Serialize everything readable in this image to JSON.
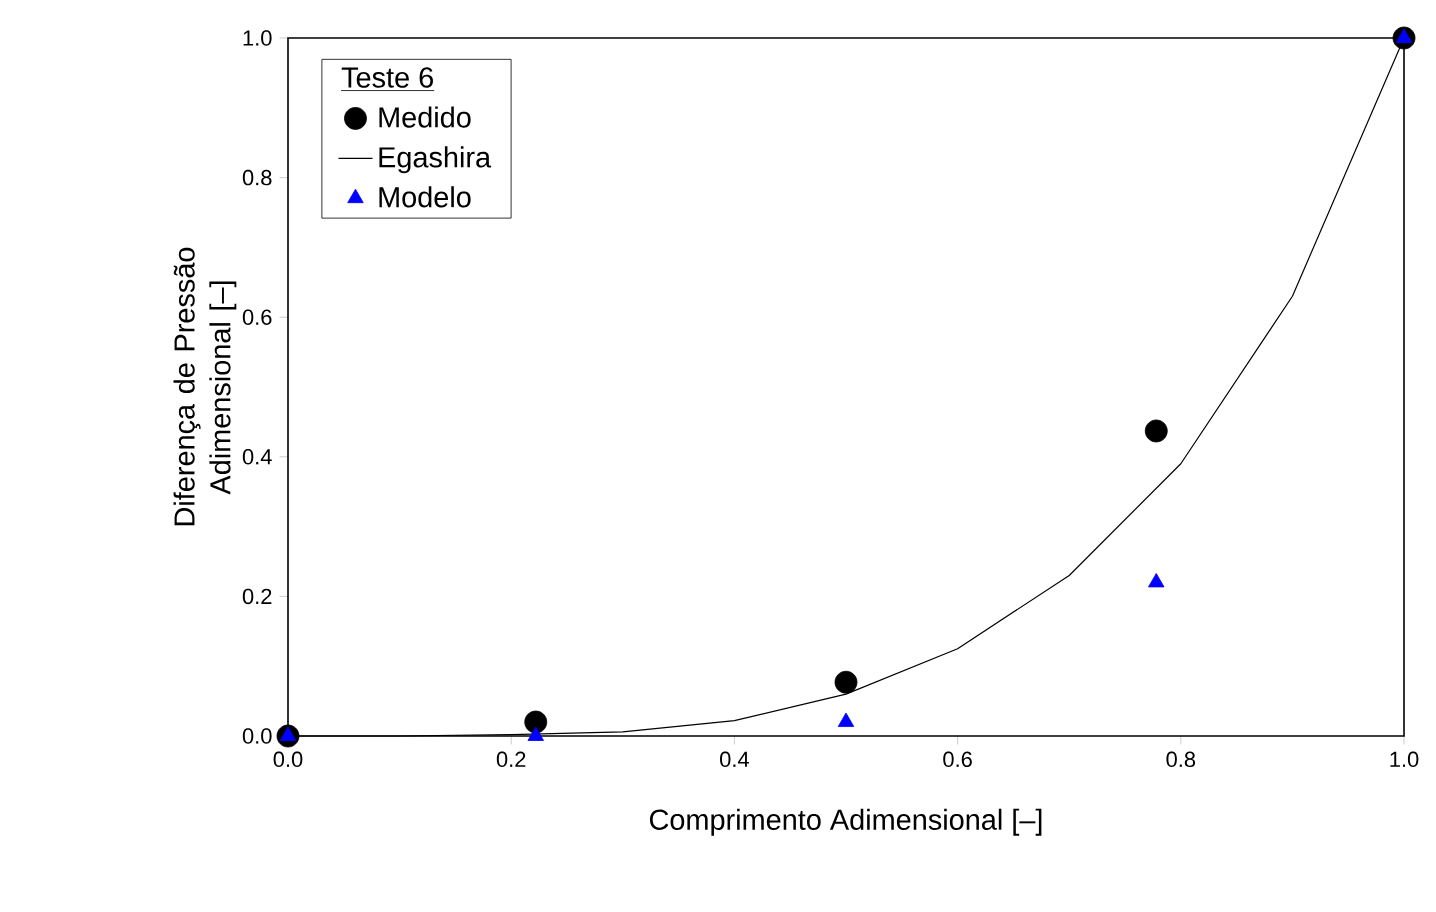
{
  "chart_data": {
    "type": "scatter",
    "xlabel": "Comprimento Adimensional [–]",
    "ylabel": "Diferença de Pressão Adimensional [–]",
    "legend_title": "Teste 6",
    "legend": "top left",
    "grid": false,
    "xlim": [
      0,
      1
    ],
    "ylim": [
      0,
      1
    ],
    "xticks": [
      {
        "value": 0,
        "label": "0.0"
      },
      {
        "value": 0.2,
        "label": "0.2"
      },
      {
        "value": 0.4,
        "label": "0.4"
      },
      {
        "value": 0.6,
        "label": "0.6"
      },
      {
        "value": 0.8,
        "label": "0.8"
      },
      {
        "value": 1,
        "label": "1.0"
      }
    ],
    "yticks": [
      {
        "value": 0,
        "label": "0.0"
      },
      {
        "value": 0.2,
        "label": "0.2"
      },
      {
        "value": 0.4,
        "label": "0.4"
      },
      {
        "value": 0.6,
        "label": "0.6"
      },
      {
        "value": 0.8,
        "label": "0.8"
      },
      {
        "value": 1,
        "label": "1.0"
      }
    ],
    "series": [
      {
        "name": "Medido",
        "marker": "circle",
        "color": "#000000",
        "x": [
          0,
          0.222,
          0.5,
          0.778,
          1.0
        ],
        "values": [
          0,
          0.02,
          0.077,
          0.437,
          1.0
        ]
      },
      {
        "name": "Egashira",
        "type": "line",
        "marker": "none",
        "line_style": "solid",
        "color": "#000000",
        "x": [
          0,
          0.1,
          0.2,
          0.3,
          0.4,
          0.5,
          0.6,
          0.7,
          0.8,
          0.9,
          1.0
        ],
        "values": [
          0,
          0,
          0.002,
          0.006,
          0.022,
          0.06,
          0.125,
          0.23,
          0.39,
          0.63,
          1.0
        ]
      },
      {
        "name": "Modelo",
        "marker": "triangle",
        "color": "#0000ff",
        "x": [
          0,
          0.222,
          0.5,
          0.778,
          1.0
        ],
        "values": [
          0,
          0,
          0.02,
          0.22,
          1.0
        ]
      }
    ]
  }
}
